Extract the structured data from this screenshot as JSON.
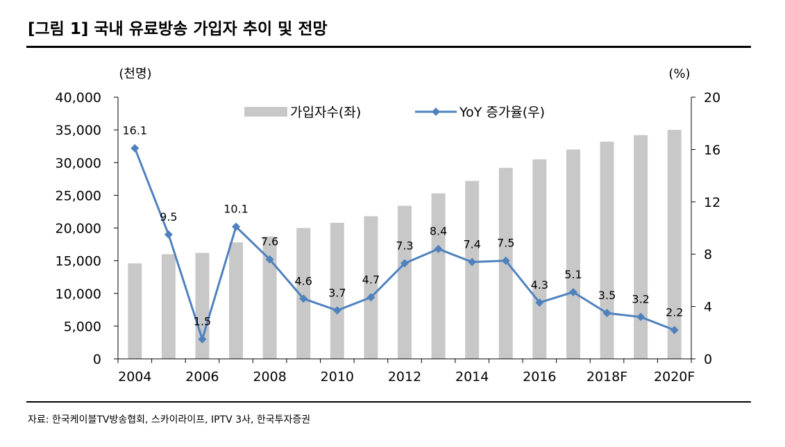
{
  "figure": {
    "title": "[그림 1] 국내 유료방송 가입자 추이 및 전망",
    "source": "자료: 한국케이블TV방송협회, 스카이라이프, IPTV 3사, 한국투자증권"
  },
  "colors": {
    "bar": "#c8c8c8",
    "line": "#4f81bd",
    "rule": "#000000"
  },
  "chart_data": {
    "type": "bar",
    "categories": [
      "2004",
      "2005",
      "2006",
      "2007",
      "2008",
      "2009",
      "2010",
      "2011",
      "2012",
      "2013",
      "2014",
      "2015",
      "2016",
      "2017",
      "2018F",
      "2019F",
      "2020F"
    ],
    "x_tick_labels": [
      "2004",
      "2006",
      "2008",
      "2010",
      "2012",
      "2014",
      "2016",
      "2018F",
      "2020F"
    ],
    "left_axis": {
      "unit": "(천명)",
      "ylim": [
        0,
        40000
      ],
      "tick_labels": [
        "0",
        "5,000",
        "10,000",
        "15,000",
        "20,000",
        "25,000",
        "30,000",
        "35,000",
        "40,000"
      ]
    },
    "right_axis": {
      "unit": "(%)",
      "ylim": [
        0,
        20
      ],
      "tick_labels": [
        "0",
        "4",
        "8",
        "12",
        "16",
        "20"
      ]
    },
    "legend_position": "top",
    "grid": false,
    "series": [
      {
        "name": "가입자수(좌)",
        "type": "bar",
        "axis": "left",
        "values": [
          14600,
          16000,
          16200,
          17800,
          18700,
          20000,
          20800,
          21800,
          23400,
          25300,
          27200,
          29200,
          30500,
          32000,
          33200,
          34200,
          35000
        ]
      },
      {
        "name": "YoY 증가율(우)",
        "type": "line",
        "axis": "right",
        "values": [
          16.1,
          9.5,
          1.5,
          10.1,
          7.6,
          4.6,
          3.7,
          4.7,
          7.3,
          8.4,
          7.4,
          7.5,
          4.3,
          5.1,
          3.5,
          3.2,
          2.2
        ],
        "labels": [
          "16.1",
          "9.5",
          "1.5",
          "10.1",
          "7.6",
          "4.6",
          "3.7",
          "4.7",
          "7.3",
          "8.4",
          "7.4",
          "7.5",
          "4.3",
          "5.1",
          "3.5",
          "3.2",
          "2.2"
        ]
      }
    ]
  }
}
